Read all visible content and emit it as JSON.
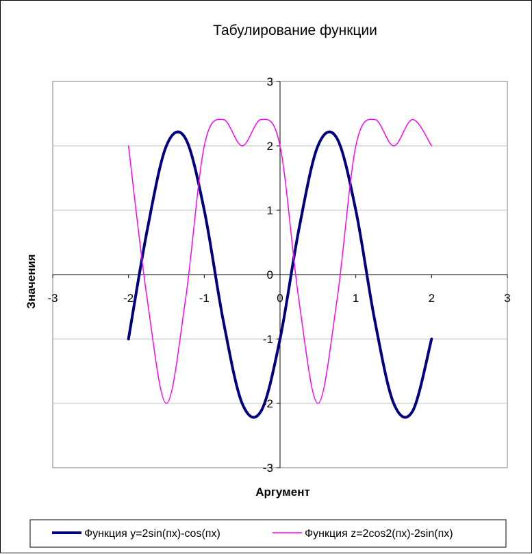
{
  "chart_data": {
    "type": "line",
    "title": "Табулирование функции",
    "xlabel": "Аргумент",
    "ylabel": "Значения",
    "xlim": [
      -3,
      3
    ],
    "ylim": [
      -3,
      3
    ],
    "x_ticks": [
      "-3",
      "-2",
      "-1",
      "0",
      "1",
      "2",
      "3"
    ],
    "y_ticks": [
      "-3",
      "-2",
      "-1",
      "0",
      "1",
      "2",
      "3"
    ],
    "grid": "horizontal",
    "legend_position": "bottom",
    "x": [
      -2,
      -1.75,
      -1.5,
      -1.25,
      -1,
      -0.75,
      -0.5,
      -0.25,
      0,
      0.25,
      0.5,
      0.75,
      1,
      1.25,
      1.5,
      1.75,
      2
    ],
    "series": [
      {
        "name": "Функция y=2sin(пx)-cos(пx)",
        "color": "#000080",
        "values": [
          -1,
          0.71,
          2,
          2.12,
          1,
          -0.71,
          -2,
          -2.12,
          -1,
          0.71,
          2,
          2.12,
          1,
          -0.71,
          -2,
          -2.12,
          -1
        ]
      },
      {
        "name": "Функция z=2cos2(пx)-2sin(пx)",
        "color": "#FF00FF",
        "values": [
          2,
          -0.41,
          -2,
          -0.41,
          2,
          2.41,
          2,
          2.41,
          2,
          -0.41,
          -2,
          -0.41,
          2,
          2.41,
          2,
          2.41,
          2
        ]
      }
    ]
  }
}
